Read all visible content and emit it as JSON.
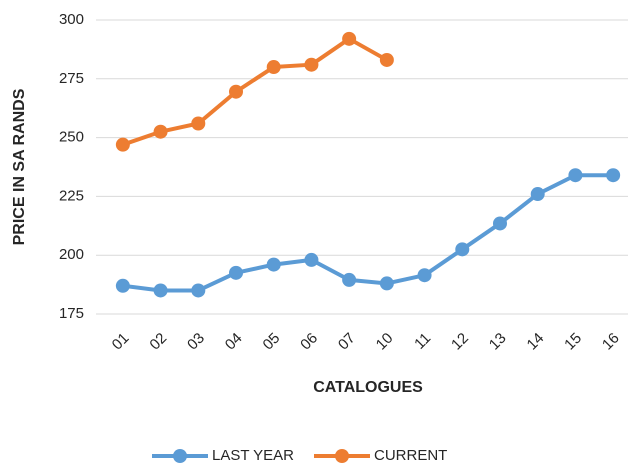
{
  "chart_data": {
    "type": "line",
    "x_label": "CATALOGUES",
    "y_label": "PRICE IN SA RANDS",
    "categories": [
      "01",
      "02",
      "03",
      "04",
      "05",
      "06",
      "07",
      "10",
      "11",
      "12",
      "13",
      "14",
      "15",
      "16"
    ],
    "series": [
      {
        "name": "LAST YEAR",
        "color": "#5b9bd5",
        "values": [
          187,
          185,
          185,
          192.5,
          196,
          198,
          189.5,
          188,
          191.5,
          202.5,
          213.5,
          226,
          234,
          234
        ]
      },
      {
        "name": "CURRENT",
        "color": "#ed7d31",
        "values": [
          247,
          252.5,
          256,
          269.5,
          280,
          281,
          292,
          283,
          null,
          null,
          null,
          null,
          null,
          null
        ]
      }
    ],
    "ylim": [
      175,
      300
    ],
    "yticks": [
      175,
      200,
      225,
      250,
      275,
      300
    ],
    "grid": true,
    "legend": "bottom"
  }
}
